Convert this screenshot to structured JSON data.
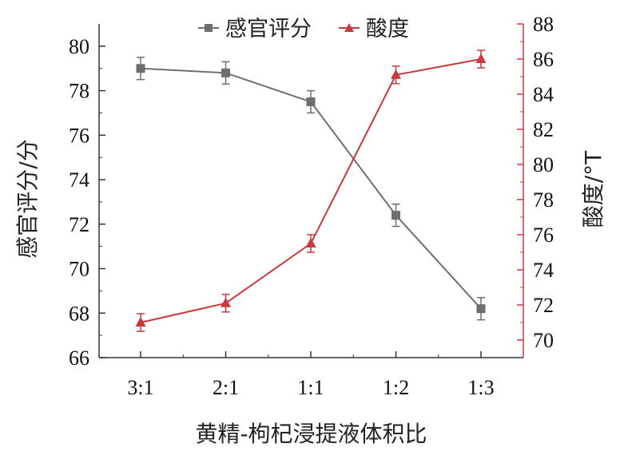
{
  "chart_data": {
    "type": "line",
    "categories": [
      "3:1",
      "2:1",
      "1:1",
      "1:2",
      "1:3"
    ],
    "xlabel": "黄精-枸杞浸提液体积比",
    "left_axis": {
      "label": "感官评分/分",
      "ylim": [
        66,
        81
      ],
      "ticks": [
        "66",
        "68",
        "70",
        "72",
        "74",
        "76",
        "78",
        "80"
      ]
    },
    "right_axis": {
      "label": "酸度/°T",
      "ylim": [
        69,
        88
      ],
      "ticks": [
        "70",
        "72",
        "74",
        "76",
        "78",
        "80",
        "82",
        "84",
        "86",
        "88"
      ]
    },
    "series": [
      {
        "name": "感官评分",
        "axis": "left",
        "marker": "square",
        "color": "#6e6e6e",
        "values": [
          79.0,
          78.8,
          77.5,
          72.4,
          68.2
        ],
        "errors": [
          0.5,
          0.5,
          0.5,
          0.5,
          0.5
        ]
      },
      {
        "name": "酸度",
        "axis": "right",
        "marker": "triangle",
        "color": "#c8383c",
        "values": [
          71.0,
          72.1,
          75.5,
          85.1,
          86.0
        ],
        "errors": [
          0.5,
          0.5,
          0.5,
          0.5,
          0.5
        ]
      }
    ],
    "legend": {
      "placement": "top"
    },
    "grid": false
  }
}
